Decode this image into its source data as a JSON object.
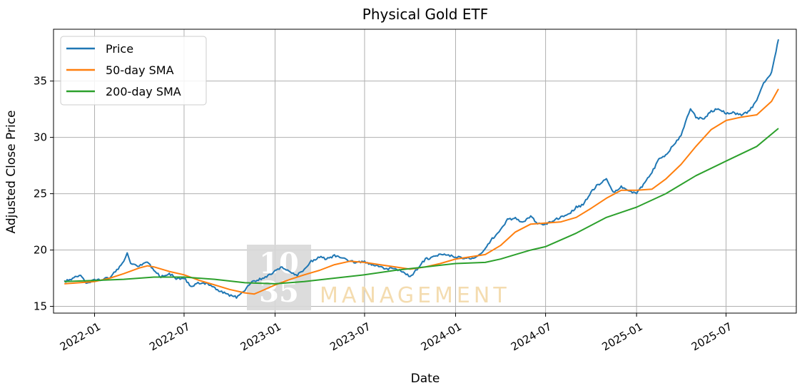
{
  "chart_data": {
    "type": "line",
    "title": "Physical Gold ETF",
    "xlabel": "Date",
    "ylabel": "Adjusted Close Price",
    "x_range": [
      "2021-10-10",
      "2025-11-20"
    ],
    "ylim": [
      14.4,
      39.6
    ],
    "y_ticks": [
      15,
      20,
      25,
      30,
      35
    ],
    "x_ticks": [
      "2022-01",
      "2022-07",
      "2023-01",
      "2023-07",
      "2024-01",
      "2024-07",
      "2025-01",
      "2025-07"
    ],
    "grid": true,
    "legend_position": "upper left",
    "watermark": {
      "mark": "10 35",
      "text": "MANAGEMENT"
    },
    "series": [
      {
        "name": "Price",
        "color": "#1f77b4",
        "x": [
          "2021-11-01",
          "2021-11-15",
          "2021-12-01",
          "2021-12-15",
          "2022-01-01",
          "2022-01-15",
          "2022-02-01",
          "2022-02-15",
          "2022-03-01",
          "2022-03-08",
          "2022-03-15",
          "2022-04-01",
          "2022-04-18",
          "2022-05-01",
          "2022-05-15",
          "2022-06-01",
          "2022-06-15",
          "2022-07-01",
          "2022-07-15",
          "2022-08-01",
          "2022-08-15",
          "2022-09-01",
          "2022-09-15",
          "2022-10-01",
          "2022-10-15",
          "2022-11-01",
          "2022-11-15",
          "2022-12-01",
          "2022-12-15",
          "2023-01-01",
          "2023-01-15",
          "2023-02-01",
          "2023-02-15",
          "2023-03-01",
          "2023-03-15",
          "2023-04-01",
          "2023-04-15",
          "2023-05-01",
          "2023-05-15",
          "2023-06-01",
          "2023-06-15",
          "2023-07-01",
          "2023-07-15",
          "2023-08-01",
          "2023-08-15",
          "2023-09-01",
          "2023-09-15",
          "2023-10-01",
          "2023-10-15",
          "2023-11-01",
          "2023-11-15",
          "2023-12-01",
          "2023-12-15",
          "2024-01-01",
          "2024-01-15",
          "2024-02-01",
          "2024-02-15",
          "2024-03-01",
          "2024-03-15",
          "2024-04-01",
          "2024-04-15",
          "2024-05-01",
          "2024-05-15",
          "2024-06-01",
          "2024-06-15",
          "2024-07-01",
          "2024-07-15",
          "2024-08-01",
          "2024-08-15",
          "2024-09-01",
          "2024-09-15",
          "2024-10-01",
          "2024-10-15",
          "2024-11-01",
          "2024-11-15",
          "2024-12-01",
          "2024-12-15",
          "2025-01-01",
          "2025-01-15",
          "2025-02-01",
          "2025-02-15",
          "2025-03-01",
          "2025-03-15",
          "2025-04-01",
          "2025-04-10",
          "2025-04-20",
          "2025-05-01",
          "2025-05-15",
          "2025-06-01",
          "2025-06-15",
          "2025-07-01",
          "2025-07-15",
          "2025-08-01",
          "2025-08-15",
          "2025-09-01",
          "2025-09-15",
          "2025-10-01",
          "2025-10-10",
          "2025-10-15"
        ],
        "y": [
          17.2,
          17.4,
          17.8,
          17.1,
          17.3,
          17.4,
          17.6,
          18.2,
          19.0,
          19.7,
          18.8,
          18.6,
          19.0,
          18.2,
          17.6,
          17.9,
          17.5,
          17.5,
          16.8,
          17.1,
          17.0,
          16.6,
          16.3,
          16.0,
          15.8,
          16.4,
          17.2,
          17.4,
          17.6,
          18.1,
          18.5,
          18.0,
          17.8,
          18.2,
          19.0,
          19.4,
          19.2,
          19.5,
          19.3,
          19.0,
          18.9,
          19.0,
          18.7,
          18.6,
          18.3,
          18.4,
          18.1,
          17.6,
          18.3,
          19.2,
          19.3,
          19.7,
          19.6,
          19.4,
          19.3,
          19.3,
          19.4,
          20.2,
          21.0,
          21.8,
          22.7,
          22.8,
          22.4,
          23.0,
          22.3,
          22.3,
          22.6,
          22.9,
          23.1,
          23.8,
          24.0,
          25.2,
          25.8,
          26.3,
          25.1,
          25.6,
          25.2,
          25.1,
          25.8,
          26.9,
          28.0,
          28.4,
          29.2,
          30.2,
          31.3,
          32.6,
          31.8,
          31.6,
          32.3,
          32.6,
          32.1,
          32.2,
          32.0,
          32.3,
          33.2,
          34.8,
          35.8,
          37.6,
          38.7
        ]
      },
      {
        "name": "50-day SMA",
        "color": "#ff7f0e",
        "x": [
          "2021-11-01",
          "2021-12-01",
          "2022-01-01",
          "2022-02-01",
          "2022-03-01",
          "2022-04-01",
          "2022-04-18",
          "2022-05-01",
          "2022-06-01",
          "2022-07-01",
          "2022-08-01",
          "2022-09-01",
          "2022-10-01",
          "2022-11-01",
          "2022-11-20",
          "2022-12-01",
          "2023-01-01",
          "2023-02-01",
          "2023-03-01",
          "2023-04-01",
          "2023-05-01",
          "2023-06-01",
          "2023-07-01",
          "2023-08-01",
          "2023-09-01",
          "2023-10-01",
          "2023-11-01",
          "2023-12-01",
          "2024-01-01",
          "2024-02-01",
          "2024-03-01",
          "2024-04-01",
          "2024-05-01",
          "2024-06-01",
          "2024-07-01",
          "2024-08-01",
          "2024-09-01",
          "2024-10-01",
          "2024-11-01",
          "2024-12-01",
          "2025-01-01",
          "2025-02-01",
          "2025-03-01",
          "2025-04-01",
          "2025-05-01",
          "2025-06-01",
          "2025-07-01",
          "2025-08-01",
          "2025-09-01",
          "2025-10-01",
          "2025-10-15"
        ],
        "y": [
          17.0,
          17.1,
          17.2,
          17.5,
          17.9,
          18.4,
          18.6,
          18.5,
          18.1,
          17.8,
          17.3,
          16.9,
          16.5,
          16.2,
          16.1,
          16.3,
          16.9,
          17.4,
          17.8,
          18.2,
          18.7,
          19.0,
          18.9,
          18.7,
          18.5,
          18.3,
          18.5,
          18.8,
          19.2,
          19.4,
          19.6,
          20.4,
          21.6,
          22.3,
          22.4,
          22.5,
          22.9,
          23.7,
          24.6,
          25.3,
          25.3,
          25.4,
          26.3,
          27.6,
          29.2,
          30.7,
          31.5,
          31.8,
          32.0,
          33.2,
          34.3
        ]
      },
      {
        "name": "200-day SMA",
        "color": "#2ca02c",
        "x": [
          "2021-11-01",
          "2022-01-01",
          "2022-03-01",
          "2022-05-01",
          "2022-07-01",
          "2022-09-01",
          "2022-11-01",
          "2023-01-01",
          "2023-03-01",
          "2023-05-01",
          "2023-07-01",
          "2023-09-01",
          "2023-11-01",
          "2024-01-01",
          "2024-03-01",
          "2024-04-01",
          "2024-05-01",
          "2024-06-01",
          "2024-07-01",
          "2024-09-01",
          "2024-11-01",
          "2025-01-01",
          "2025-03-01",
          "2025-05-01",
          "2025-07-01",
          "2025-09-01",
          "2025-10-15"
        ],
        "y": [
          17.2,
          17.3,
          17.4,
          17.6,
          17.6,
          17.4,
          17.1,
          17.0,
          17.2,
          17.5,
          17.8,
          18.2,
          18.5,
          18.8,
          18.9,
          19.2,
          19.6,
          20.0,
          20.3,
          21.5,
          22.9,
          23.8,
          25.0,
          26.6,
          27.9,
          29.2,
          30.8
        ]
      }
    ]
  }
}
